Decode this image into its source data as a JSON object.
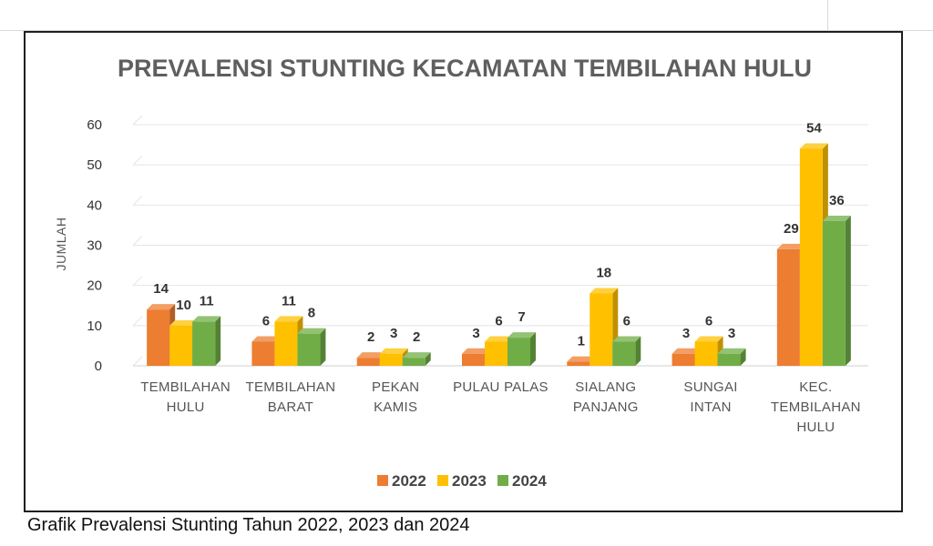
{
  "caption": "Grafik Prevalensi Stunting Tahun 2022, 2023 dan 2024",
  "chart_data": {
    "type": "bar",
    "title": "PREVALENSI STUNTING KECAMATAN TEMBILAHAN HULU",
    "xlabel": "",
    "ylabel": "JUMLAH",
    "ylim": [
      0,
      60
    ],
    "yticks": [
      "0",
      "10",
      "20",
      "30",
      "40",
      "50",
      "60"
    ],
    "grid": true,
    "legend_position": "bottom",
    "categories": [
      [
        "TEMBILAHAN",
        "HULU"
      ],
      [
        "TEMBILAHAN",
        "BARAT"
      ],
      [
        "PEKAN",
        "KAMIS"
      ],
      [
        "PULAU PALAS"
      ],
      [
        "SIALANG",
        "PANJANG"
      ],
      [
        "SUNGAI",
        "INTAN"
      ],
      [
        "KEC.",
        "TEMBILAHAN",
        "HULU"
      ]
    ],
    "series": [
      {
        "name": "2022",
        "color": "#ed7d31",
        "values": [
          14,
          6,
          2,
          3,
          1,
          3,
          29
        ]
      },
      {
        "name": "2023",
        "color": "#ffc000",
        "values": [
          10,
          11,
          3,
          6,
          18,
          6,
          54
        ]
      },
      {
        "name": "2024",
        "color": "#70ad47",
        "values": [
          11,
          8,
          2,
          7,
          6,
          3,
          36
        ]
      }
    ]
  }
}
